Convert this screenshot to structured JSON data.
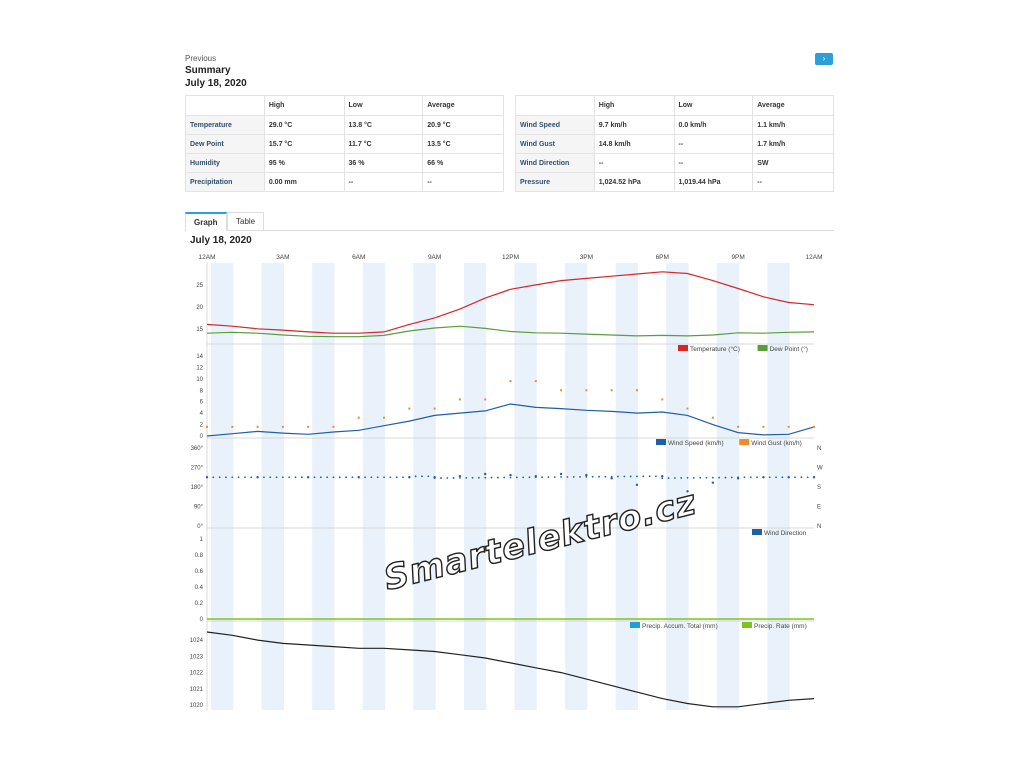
{
  "header": {
    "previous": "Previous",
    "title": "Summary",
    "date": "July 18, 2020"
  },
  "left_table": {
    "headers": [
      "",
      "High",
      "Low",
      "Average"
    ],
    "rows": [
      {
        "label": "Temperature",
        "high": "29.0",
        "high_unit": "°C",
        "low": "13.8",
        "low_unit": "°C",
        "avg": "20.9",
        "avg_unit": "°C"
      },
      {
        "label": "Dew Point",
        "high": "15.7",
        "high_unit": "°C",
        "low": "11.7",
        "low_unit": "°C",
        "avg": "13.5",
        "avg_unit": "°C"
      },
      {
        "label": "Humidity",
        "high": "95",
        "high_unit": "%",
        "low": "36",
        "low_unit": "%",
        "avg": "66",
        "avg_unit": "%"
      },
      {
        "label": "Precipitation",
        "high": "0.00",
        "high_unit": "mm",
        "low": "--",
        "low_unit": "",
        "avg": "--",
        "avg_unit": ""
      }
    ]
  },
  "right_table": {
    "headers": [
      "",
      "High",
      "Low",
      "Average"
    ],
    "rows": [
      {
        "label": "Wind Speed",
        "high": "9.7",
        "high_unit": "km/h",
        "low": "0.0",
        "low_unit": "km/h",
        "avg": "1.1",
        "avg_unit": "km/h"
      },
      {
        "label": "Wind Gust",
        "high": "14.8",
        "high_unit": "km/h",
        "low": "--",
        "low_unit": "",
        "avg": "1.7",
        "avg_unit": "km/h"
      },
      {
        "label": "Wind Direction",
        "high": "--",
        "high_unit": "",
        "low": "--",
        "low_unit": "",
        "avg": "SW",
        "avg_unit": ""
      },
      {
        "label": "Pressure",
        "high": "1,024.52",
        "high_unit": "hPa",
        "low": "1,019.44",
        "low_unit": "hPa",
        "avg": "--",
        "avg_unit": ""
      }
    ]
  },
  "tabs": [
    {
      "label": "Graph",
      "active": true
    },
    {
      "label": "Table",
      "active": false
    }
  ],
  "graph": {
    "date": "July 18, 2020",
    "x_ticks": [
      "12AM",
      "3AM",
      "6AM",
      "9AM",
      "12PM",
      "3PM",
      "6PM",
      "9PM",
      "12AM"
    ],
    "colors": {
      "temperature": "#d62728",
      "dew_point": "#5a9e3c",
      "wind_speed": "#1f5fa8",
      "wind_gust": "#f08a2c",
      "wind_direction": "#1f5fa8",
      "precip_accum": "#1f9fd8",
      "precip_rate": "#7fc41e",
      "pressure": "#222222",
      "band": "#e9f1fa"
    },
    "panels": [
      {
        "id": "temp",
        "y_ticks": [
          "25",
          "20",
          "15"
        ],
        "y_range": [
          12,
          30
        ],
        "legend": [
          {
            "label": "Temperature (°C)",
            "color_key": "temperature"
          },
          {
            "label": "Dew Point (°)",
            "color_key": "dew_point"
          }
        ],
        "series": {
          "temperature": [
            [
              0,
              16
            ],
            [
              1,
              15.6
            ],
            [
              2,
              15
            ],
            [
              3,
              14.7
            ],
            [
              4,
              14.3
            ],
            [
              5,
              14
            ],
            [
              6,
              14
            ],
            [
              7,
              14.3
            ],
            [
              8,
              16
            ],
            [
              9,
              17.5
            ],
            [
              10,
              19.5
            ],
            [
              11,
              22
            ],
            [
              12,
              24
            ],
            [
              13,
              25
            ],
            [
              14,
              26
            ],
            [
              15,
              26.5
            ],
            [
              16,
              27
            ],
            [
              17,
              27.5
            ],
            [
              18,
              28
            ],
            [
              19,
              27.6
            ],
            [
              20,
              26
            ],
            [
              21,
              24.2
            ],
            [
              22,
              22.3
            ],
            [
              23,
              21
            ],
            [
              24,
              20.5
            ]
          ],
          "dew_point": [
            [
              0,
              14
            ],
            [
              1,
              14.2
            ],
            [
              2,
              14
            ],
            [
              3,
              13.6
            ],
            [
              4,
              13.3
            ],
            [
              5,
              13.2
            ],
            [
              6,
              13.2
            ],
            [
              7,
              13.5
            ],
            [
              8,
              14.5
            ],
            [
              9,
              15.2
            ],
            [
              10,
              15.6
            ],
            [
              11,
              15.1
            ],
            [
              12,
              14.4
            ],
            [
              13,
              14.1
            ],
            [
              14,
              14
            ],
            [
              15,
              13.8
            ],
            [
              16,
              13.6
            ],
            [
              17,
              13.4
            ],
            [
              18,
              13.5
            ],
            [
              19,
              13.4
            ],
            [
              20,
              13.6
            ],
            [
              21,
              14.1
            ],
            [
              22,
              14
            ],
            [
              23,
              14.2
            ],
            [
              24,
              14.3
            ]
          ]
        }
      },
      {
        "id": "wind",
        "y_ticks": [
          "14",
          "12",
          "10",
          "8",
          "6",
          "4",
          "2",
          "0"
        ],
        "y_range": [
          0,
          14
        ],
        "legend": [
          {
            "label": "Wind Speed (km/h)",
            "color_key": "wind_speed"
          },
          {
            "label": "Wind Gust (km/h)",
            "color_key": "wind_gust"
          }
        ],
        "series": {
          "wind_speed": [
            [
              0,
              0
            ],
            [
              1,
              0.4
            ],
            [
              2,
              0.8
            ],
            [
              3,
              0.5
            ],
            [
              4,
              0.3
            ],
            [
              5,
              0.7
            ],
            [
              6,
              1
            ],
            [
              7,
              1.8
            ],
            [
              8,
              2.6
            ],
            [
              9,
              3.6
            ],
            [
              10,
              4
            ],
            [
              11,
              4.4
            ],
            [
              12,
              5.6
            ],
            [
              13,
              5
            ],
            [
              14,
              4.8
            ],
            [
              15,
              4.5
            ],
            [
              16,
              4.3
            ],
            [
              17,
              4
            ],
            [
              18,
              4.2
            ],
            [
              19,
              3.6
            ],
            [
              20,
              2
            ],
            [
              21,
              0.6
            ],
            [
              22,
              0.2
            ],
            [
              23,
              0.3
            ],
            [
              24,
              1.6
            ]
          ],
          "wind_gust": [
            [
              0,
              1.6
            ],
            [
              1,
              1.6
            ],
            [
              2,
              1.6
            ],
            [
              3,
              1.6
            ],
            [
              4,
              1.6
            ],
            [
              5,
              1.6
            ],
            [
              6,
              3.2
            ],
            [
              7,
              3.2
            ],
            [
              8,
              4.8
            ],
            [
              9,
              4.8
            ],
            [
              10,
              6.4
            ],
            [
              11,
              6.4
            ],
            [
              12,
              9.6
            ],
            [
              13,
              9.6
            ],
            [
              14,
              8
            ],
            [
              15,
              8
            ],
            [
              16,
              8
            ],
            [
              17,
              8
            ],
            [
              18,
              6.4
            ],
            [
              19,
              4.8
            ],
            [
              20,
              3.2
            ],
            [
              21,
              1.6
            ],
            [
              22,
              1.6
            ],
            [
              23,
              1.6
            ],
            [
              24,
              1.6
            ]
          ]
        }
      },
      {
        "id": "dir",
        "y_ticks": [
          "360°",
          "270°",
          "180°",
          "90°",
          "0°"
        ],
        "right_ticks": [
          "N",
          "W",
          "S",
          "E",
          "N"
        ],
        "y_range": [
          0,
          360
        ],
        "legend": [
          {
            "label": "Wind Direction",
            "color_key": "wind_direction"
          }
        ],
        "series": {
          "wind_direction": [
            [
              0,
              225
            ],
            [
              2,
              225
            ],
            [
              4,
              225
            ],
            [
              6,
              225
            ],
            [
              8,
              225
            ],
            [
              9,
              225
            ],
            [
              10,
              230
            ],
            [
              11,
              240
            ],
            [
              12,
              235
            ],
            [
              13,
              230
            ],
            [
              14,
              240
            ],
            [
              15,
              235
            ],
            [
              16,
              220
            ],
            [
              17,
              190
            ],
            [
              18,
              230
            ],
            [
              19,
              160
            ],
            [
              20,
              200
            ],
            [
              21,
              220
            ],
            [
              22,
              225
            ],
            [
              23,
              225
            ],
            [
              24,
              225
            ]
          ]
        }
      },
      {
        "id": "precip",
        "y_ticks": [
          "1",
          "0.8",
          "0.6",
          "0.4",
          "0.2",
          "0"
        ],
        "y_range": [
          0,
          1
        ],
        "legend": [
          {
            "label": "Precip. Accum. Total (mm)",
            "color_key": "precip_accum"
          },
          {
            "label": "Precip. Rate (mm)",
            "color_key": "precip_rate"
          }
        ],
        "series": {
          "precip_rate": [
            [
              0,
              0
            ],
            [
              24,
              0
            ]
          ]
        }
      },
      {
        "id": "pressure",
        "y_ticks": [
          "1024",
          "1023",
          "1022",
          "1021",
          "1020"
        ],
        "y_range": [
          1019.7,
          1024.5
        ],
        "legend": [],
        "series": {
          "pressure": [
            [
              0,
              1024.5
            ],
            [
              1,
              1024.3
            ],
            [
              2,
              1024
            ],
            [
              3,
              1023.8
            ],
            [
              4,
              1023.7
            ],
            [
              5,
              1023.6
            ],
            [
              6,
              1023.5
            ],
            [
              7,
              1023.5
            ],
            [
              8,
              1023.4
            ],
            [
              9,
              1023.3
            ],
            [
              10,
              1023.1
            ],
            [
              11,
              1022.9
            ],
            [
              12,
              1022.6
            ],
            [
              13,
              1022.3
            ],
            [
              14,
              1022
            ],
            [
              15,
              1021.6
            ],
            [
              16,
              1021.2
            ],
            [
              17,
              1020.8
            ],
            [
              18,
              1020.4
            ],
            [
              19,
              1020.1
            ],
            [
              20,
              1019.9
            ],
            [
              21,
              1019.9
            ],
            [
              22,
              1020.1
            ],
            [
              23,
              1020.3
            ],
            [
              24,
              1020.4
            ]
          ]
        }
      }
    ]
  },
  "watermark": "Smartelektro.cz"
}
